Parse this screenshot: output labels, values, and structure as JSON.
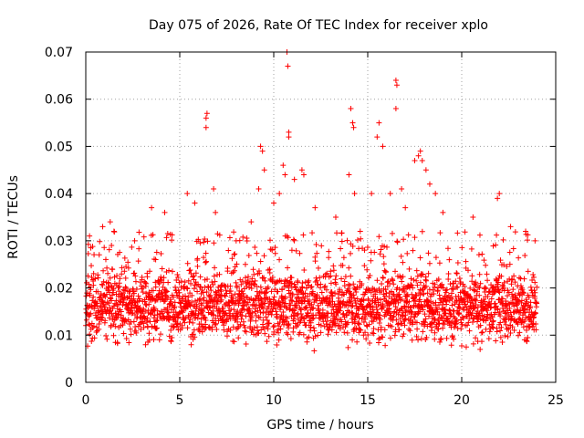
{
  "chart_data": {
    "type": "scatter",
    "title": "Day 075 of 2026, Rate Of TEC Index for receiver xplo",
    "xlabel": "GPS time / hours",
    "ylabel": "ROTI / TECUs",
    "xlim": [
      0,
      25
    ],
    "ylim": [
      0,
      0.07
    ],
    "xticks": [
      0,
      5,
      10,
      15,
      20,
      25
    ],
    "xtick_labels": [
      "0",
      "5",
      "10",
      "15",
      "20",
      "25"
    ],
    "yticks": [
      0,
      0.01,
      0.02,
      0.03,
      0.04,
      0.05,
      0.06,
      0.07
    ],
    "ytick_labels": [
      "0",
      "0.01",
      "0.02",
      "0.03",
      "0.04",
      "0.05",
      "0.06",
      "0.07"
    ],
    "grid": true,
    "marker": "+",
    "color": "#ff0000",
    "series": [
      {
        "name": "ROTI",
        "description": "Dense cloud of ROTI samples from 0 to 24 h, bulk between ~0.008 and ~0.025 TECU, with sparse spikes",
        "bulk_range": [
          0.006,
          0.026
        ],
        "time_range": [
          0,
          24
        ],
        "outliers": [
          {
            "x": 0.2,
            "y": 0.031
          },
          {
            "x": 0.9,
            "y": 0.033
          },
          {
            "x": 1.3,
            "y": 0.034
          },
          {
            "x": 1.5,
            "y": 0.032
          },
          {
            "x": 2.6,
            "y": 0.03
          },
          {
            "x": 3.5,
            "y": 0.037
          },
          {
            "x": 4.2,
            "y": 0.036
          },
          {
            "x": 5.4,
            "y": 0.04
          },
          {
            "x": 5.8,
            "y": 0.038
          },
          {
            "x": 6.4,
            "y": 0.056
          },
          {
            "x": 6.45,
            "y": 0.057
          },
          {
            "x": 6.4,
            "y": 0.054
          },
          {
            "x": 6.8,
            "y": 0.041
          },
          {
            "x": 6.9,
            "y": 0.036
          },
          {
            "x": 8.0,
            "y": 0.03
          },
          {
            "x": 8.8,
            "y": 0.034
          },
          {
            "x": 9.3,
            "y": 0.05
          },
          {
            "x": 9.4,
            "y": 0.049
          },
          {
            "x": 9.5,
            "y": 0.045
          },
          {
            "x": 9.2,
            "y": 0.041
          },
          {
            "x": 10.0,
            "y": 0.038
          },
          {
            "x": 10.3,
            "y": 0.04
          },
          {
            "x": 10.5,
            "y": 0.046
          },
          {
            "x": 10.6,
            "y": 0.044
          },
          {
            "x": 10.7,
            "y": 0.07
          },
          {
            "x": 10.75,
            "y": 0.067
          },
          {
            "x": 10.8,
            "y": 0.053
          },
          {
            "x": 10.8,
            "y": 0.052
          },
          {
            "x": 11.1,
            "y": 0.043
          },
          {
            "x": 11.5,
            "y": 0.045
          },
          {
            "x": 11.6,
            "y": 0.044
          },
          {
            "x": 12.2,
            "y": 0.037
          },
          {
            "x": 13.3,
            "y": 0.035
          },
          {
            "x": 14.0,
            "y": 0.044
          },
          {
            "x": 14.1,
            "y": 0.058
          },
          {
            "x": 14.2,
            "y": 0.055
          },
          {
            "x": 14.25,
            "y": 0.054
          },
          {
            "x": 14.3,
            "y": 0.04
          },
          {
            "x": 14.6,
            "y": 0.032
          },
          {
            "x": 15.2,
            "y": 0.04
          },
          {
            "x": 15.5,
            "y": 0.052
          },
          {
            "x": 15.6,
            "y": 0.055
          },
          {
            "x": 15.8,
            "y": 0.05
          },
          {
            "x": 16.2,
            "y": 0.04
          },
          {
            "x": 16.5,
            "y": 0.064
          },
          {
            "x": 16.55,
            "y": 0.063
          },
          {
            "x": 16.5,
            "y": 0.058
          },
          {
            "x": 16.8,
            "y": 0.041
          },
          {
            "x": 17.0,
            "y": 0.037
          },
          {
            "x": 17.5,
            "y": 0.047
          },
          {
            "x": 17.7,
            "y": 0.048
          },
          {
            "x": 17.8,
            "y": 0.049
          },
          {
            "x": 17.9,
            "y": 0.047
          },
          {
            "x": 18.1,
            "y": 0.045
          },
          {
            "x": 18.3,
            "y": 0.042
          },
          {
            "x": 18.6,
            "y": 0.04
          },
          {
            "x": 19.0,
            "y": 0.036
          },
          {
            "x": 20.6,
            "y": 0.035
          },
          {
            "x": 21.9,
            "y": 0.039
          },
          {
            "x": 22.0,
            "y": 0.04
          },
          {
            "x": 22.6,
            "y": 0.033
          },
          {
            "x": 23.4,
            "y": 0.032
          },
          {
            "x": 23.9,
            "y": 0.03
          }
        ]
      }
    ]
  }
}
